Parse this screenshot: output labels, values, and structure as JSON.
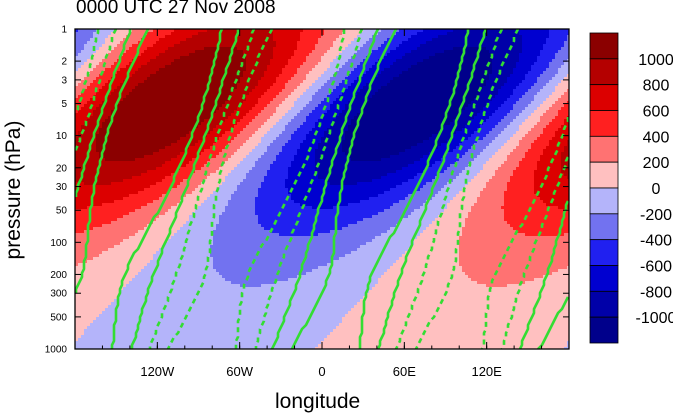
{
  "chart_data": {
    "type": "heatmap",
    "title": "0000 UTC 27 Nov 2008",
    "xlabel": "longitude",
    "ylabel": "pressure (hPa)",
    "x_axis": {
      "range": [
        -180,
        180
      ],
      "ticks": [
        -120,
        -60,
        0,
        60,
        120
      ],
      "tick_labels": [
        "120W",
        "60W",
        "0",
        "60E",
        "120E"
      ]
    },
    "y_axis": {
      "scale": "log",
      "reversed": true,
      "range": [
        1000,
        1
      ],
      "ticks": [
        1,
        2,
        3,
        5,
        10,
        20,
        30,
        50,
        100,
        200,
        300,
        500,
        1000
      ],
      "tick_labels": [
        "1",
        "2",
        "3",
        "5",
        "10",
        "20",
        "30",
        "50",
        "100",
        "200",
        "300",
        "500",
        "1000"
      ]
    },
    "colorbar": {
      "levels": [
        1000,
        800,
        600,
        400,
        200,
        0,
        -200,
        -400,
        -600,
        -800,
        -1000
      ],
      "labels": [
        "1000",
        "800",
        "600",
        "400",
        "200",
        "0",
        "-200",
        "-400",
        "-600",
        "-800",
        "-1000"
      ],
      "colors": [
        "#8b0000",
        "#b40000",
        "#dc0000",
        "#ff2020",
        "#ff7272",
        "#ffc0c0",
        "#b4b4fa",
        "#7272f0",
        "#2020f0",
        "#0000d0",
        "#0000a8",
        "#00008b"
      ]
    },
    "shaded_field": {
      "description_units": "same as colorbar",
      "extrema": [
        {
          "sign": "positive",
          "center_lon": -150,
          "center_p": 5,
          "value": 1100
        },
        {
          "sign": "negative",
          "center_lon": 30,
          "center_p": 5,
          "value": -1100
        }
      ]
    },
    "contour_overlay": {
      "color": "#33dd33",
      "styles": [
        "solid (positive)",
        "dashed (negative)"
      ]
    }
  }
}
